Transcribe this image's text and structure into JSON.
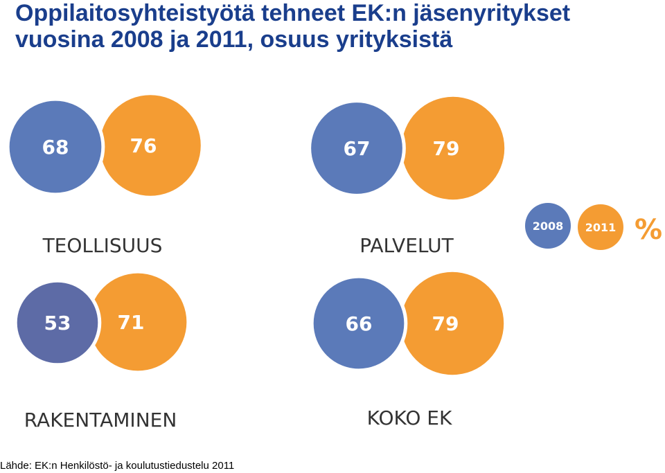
{
  "header": {
    "title_line1": "Oppilaitosyhteistyötä tehneet EK:n jäsenyritykset",
    "title_line2": "vuosina 2008 ja 2011, osuus yrityksistä"
  },
  "colors": {
    "series_2008": "#5b7ab9",
    "series_2008_rakentaminen": "#5d6ba6",
    "series_2011": "#f49c33",
    "label_text": "#ffffff",
    "category_text": "#333333"
  },
  "chart_data": {
    "type": "bubble-pairs",
    "series": [
      {
        "name": "2008"
      },
      {
        "name": "2011"
      }
    ],
    "unit": "%",
    "groups": [
      {
        "category": "TEOLLISUUS",
        "values": [
          68,
          76
        ]
      },
      {
        "category": "PALVELUT",
        "values": [
          67,
          79
        ]
      },
      {
        "category": "RAKENTAMINEN",
        "values": [
          53,
          71
        ]
      },
      {
        "category": "KOKO EK",
        "values": [
          66,
          79
        ]
      }
    ]
  },
  "footer": {
    "source": "Lähde: EK:n Henkilöstö- ja koulutustiedustelu 2011"
  }
}
